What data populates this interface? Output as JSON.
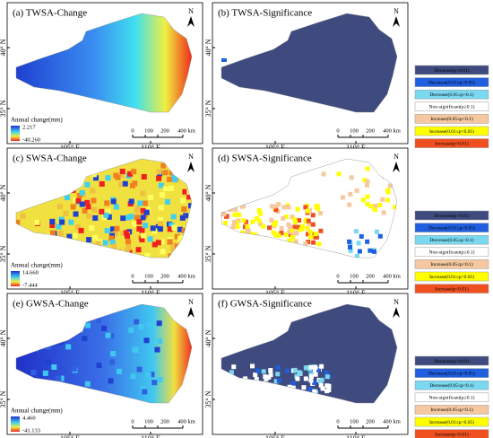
{
  "panels": [
    {
      "title": "(a) TWSA-Change",
      "colorbar": {
        "title": "Annual change(mm)",
        "max": "2.217",
        "min": "-40.260"
      }
    },
    {
      "title": "(b) TWSA-Significance"
    },
    {
      "title": "(c) SWSA-Change",
      "colorbar": {
        "title": "Annual change(mm)",
        "max": "14.660",
        "min": "-7.444"
      }
    },
    {
      "title": "(d) SWSA-Significance"
    },
    {
      "title": "(e) GWSA-Change",
      "colorbar": {
        "title": "Annual change(mm)",
        "max": "4.460",
        "min": "-41.133"
      }
    },
    {
      "title": "(f) GWSA-Significance"
    }
  ],
  "axes": {
    "x_labels": [
      "105° E",
      "110° E"
    ],
    "y_labels": [
      "40° N",
      "35° N"
    ]
  },
  "scale_bar": [
    "0",
    "100",
    "200",
    "400 km"
  ],
  "north": "N",
  "legend": [
    "Decrease(p<0.01)",
    "Decrease(0.01≤p<0.05)",
    "Decrease(0.05≤p<0.1)",
    "Non-significant(p≥0.1)",
    "Increase(0.05≤p<0.1)",
    "Increase(0.01≤p<0.05)",
    "Increase(p<0.01)"
  ]
}
